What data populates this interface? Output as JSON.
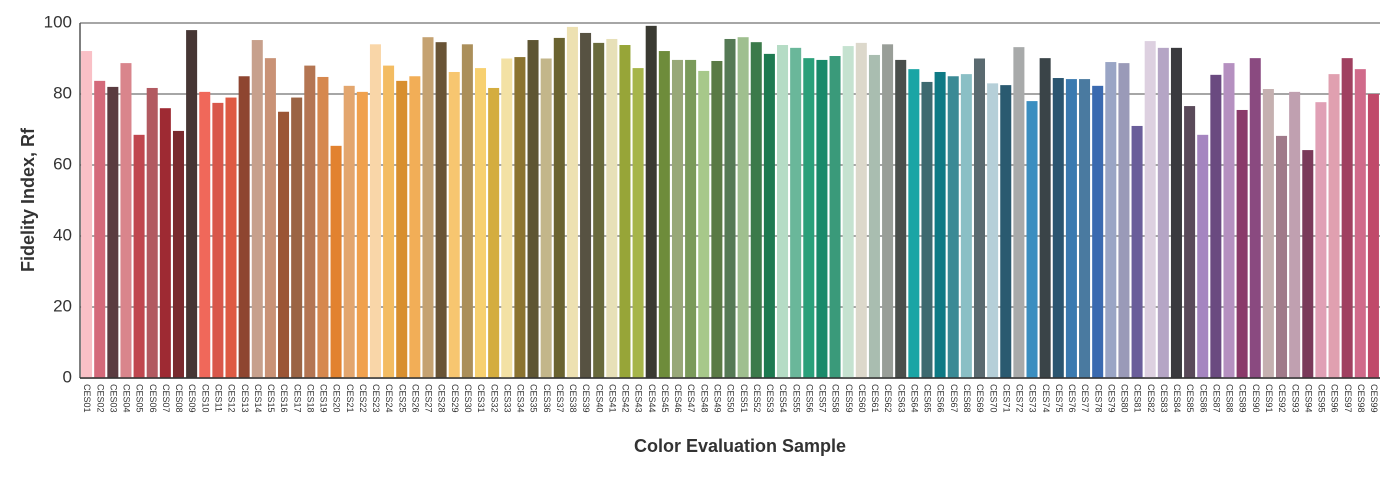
{
  "chart_data": {
    "type": "bar",
    "x_label": "Color Evaluation Sample",
    "y_label": "Fidelity Index, Rf",
    "ylim": [
      0,
      100
    ],
    "yticks": [
      0,
      20,
      40,
      60,
      80,
      100
    ],
    "grid": true,
    "categories": [
      "CES01",
      "CES02",
      "CES03",
      "CES04",
      "CES05",
      "CES06",
      "CES07",
      "CES08",
      "CES09",
      "CES10",
      "CES11",
      "CES12",
      "CES13",
      "CES14",
      "CES15",
      "CES16",
      "CES17",
      "CES18",
      "CES19",
      "CES20",
      "CES21",
      "CES22",
      "CES23",
      "CES24",
      "CES25",
      "CES26",
      "CES27",
      "CES28",
      "CES29",
      "CES30",
      "CES31",
      "CES32",
      "CES33",
      "CES34",
      "CES35",
      "CES36",
      "CES37",
      "CES38",
      "CES39",
      "CES40",
      "CES41",
      "CES42",
      "CES43",
      "CES44",
      "CES45",
      "CES46",
      "CES47",
      "CES48",
      "CES49",
      "CES50",
      "CES51",
      "CES52",
      "CES53",
      "CES54",
      "CES55",
      "CES56",
      "CES57",
      "CES58",
      "CES59",
      "CES60",
      "CES61",
      "CES62",
      "CES63",
      "CES64",
      "CES65",
      "CES66",
      "CES67",
      "CES68",
      "CES69",
      "CES70",
      "CES71",
      "CES72",
      "CES73",
      "CES74",
      "CES75",
      "CES76",
      "CES77",
      "CES78",
      "CES79",
      "CES80",
      "CES81",
      "CES82",
      "CES83",
      "CES84",
      "CES85",
      "CES86",
      "CES87",
      "CES88",
      "CES89",
      "CES90",
      "CES91",
      "CES92",
      "CES93",
      "CES94",
      "CES95",
      "CES96",
      "CES97",
      "CES98",
      "CES99"
    ],
    "values": [
      92.1,
      83.7,
      82,
      88.7,
      68.5,
      81.7,
      76,
      69.6,
      98,
      80.6,
      77.5,
      79,
      85,
      95.2,
      90.1,
      75,
      79,
      88,
      84.8,
      65.4,
      82.3,
      80.6,
      94,
      88,
      83.7,
      85,
      96,
      94.6,
      86.2,
      94,
      87.3,
      81.7,
      90,
      90.4,
      95.2,
      90,
      95.8,
      98.9,
      97.2,
      94.4,
      95.5,
      93.8,
      87.3,
      99.2,
      92.1,
      89.6,
      89.6,
      86.5,
      89.3,
      95.5,
      96,
      94.6,
      91.3,
      93.8,
      93,
      90.1,
      89.6,
      90.7,
      93.5,
      94.4,
      91,
      94,
      89.6,
      87,
      83.4,
      86.2,
      85,
      85.6,
      90,
      83,
      82.5,
      93.2,
      78,
      90.1,
      84.5,
      84.2,
      84.2,
      82.3,
      89,
      88.7,
      71,
      94.9,
      93,
      93,
      76.6,
      68.5,
      85.4,
      88.7,
      75.5,
      90.1,
      81.4,
      68.2,
      80.6,
      64.2,
      77.7,
      85.6,
      90.1,
      87,
      80
    ],
    "colors": [
      "#f9c0c6",
      "#d4697a",
      "#5a3b40",
      "#d9858c",
      "#c0474f",
      "#b25a61",
      "#9e2a33",
      "#7a2a2e",
      "#463634",
      "#f0685a",
      "#d9574a",
      "#de5a43",
      "#8e4530",
      "#c7a08c",
      "#c99276",
      "#9b5535",
      "#9b6444",
      "#b47552",
      "#d6884e",
      "#e2822f",
      "#e3a66e",
      "#f0a14e",
      "#f9d6a8",
      "#f3bc62",
      "#d88f2f",
      "#f2ae57",
      "#c5a271",
      "#695436",
      "#f7c670",
      "#ab8f5a",
      "#f7d070",
      "#d4ad3f",
      "#f3e1a4",
      "#8b7330",
      "#5e5533",
      "#c3b68a",
      "#6a6330",
      "#ede1b2",
      "#575242",
      "#696a3c",
      "#e7e0b8",
      "#97a538",
      "#a6b54a",
      "#3a3a32",
      "#6e8c3b",
      "#98a878",
      "#7a9a5a",
      "#a7c88a",
      "#5a7a45",
      "#557a55",
      "#9fbf8f",
      "#3b7a4a",
      "#1d7a50",
      "#b5dcc5",
      "#6ab79a",
      "#2aa07a",
      "#1a8a6a",
      "#3a9a7a",
      "#c5e2d0",
      "#dcd8cb",
      "#a9bdb0",
      "#999e98",
      "#4a4f4c",
      "#1aa5a5",
      "#3d6a70",
      "#0e7a85",
      "#3a8a95",
      "#8abfc5",
      "#5a6a70",
      "#b5cfd8",
      "#2a5a70",
      "#a8aaaa",
      "#3a8ec0",
      "#3a4448",
      "#2a5570",
      "#3a7ab0",
      "#4a7aa0",
      "#3a6ab0",
      "#9aa5c5",
      "#9a9ab8",
      "#6a5e9a",
      "#ddd0e0",
      "#b5a5c5",
      "#3a3a3e",
      "#5a4a5a",
      "#a585c0",
      "#6a4a80",
      "#b590c0",
      "#8a3a6a",
      "#8a4a80",
      "#c5b0b0",
      "#a07a8a",
      "#c0a0b0",
      "#7a3a5a",
      "#e0a0b5",
      "#e0a0b0",
      "#a04060",
      "#d06a8a",
      "#c04a6a"
    ]
  }
}
